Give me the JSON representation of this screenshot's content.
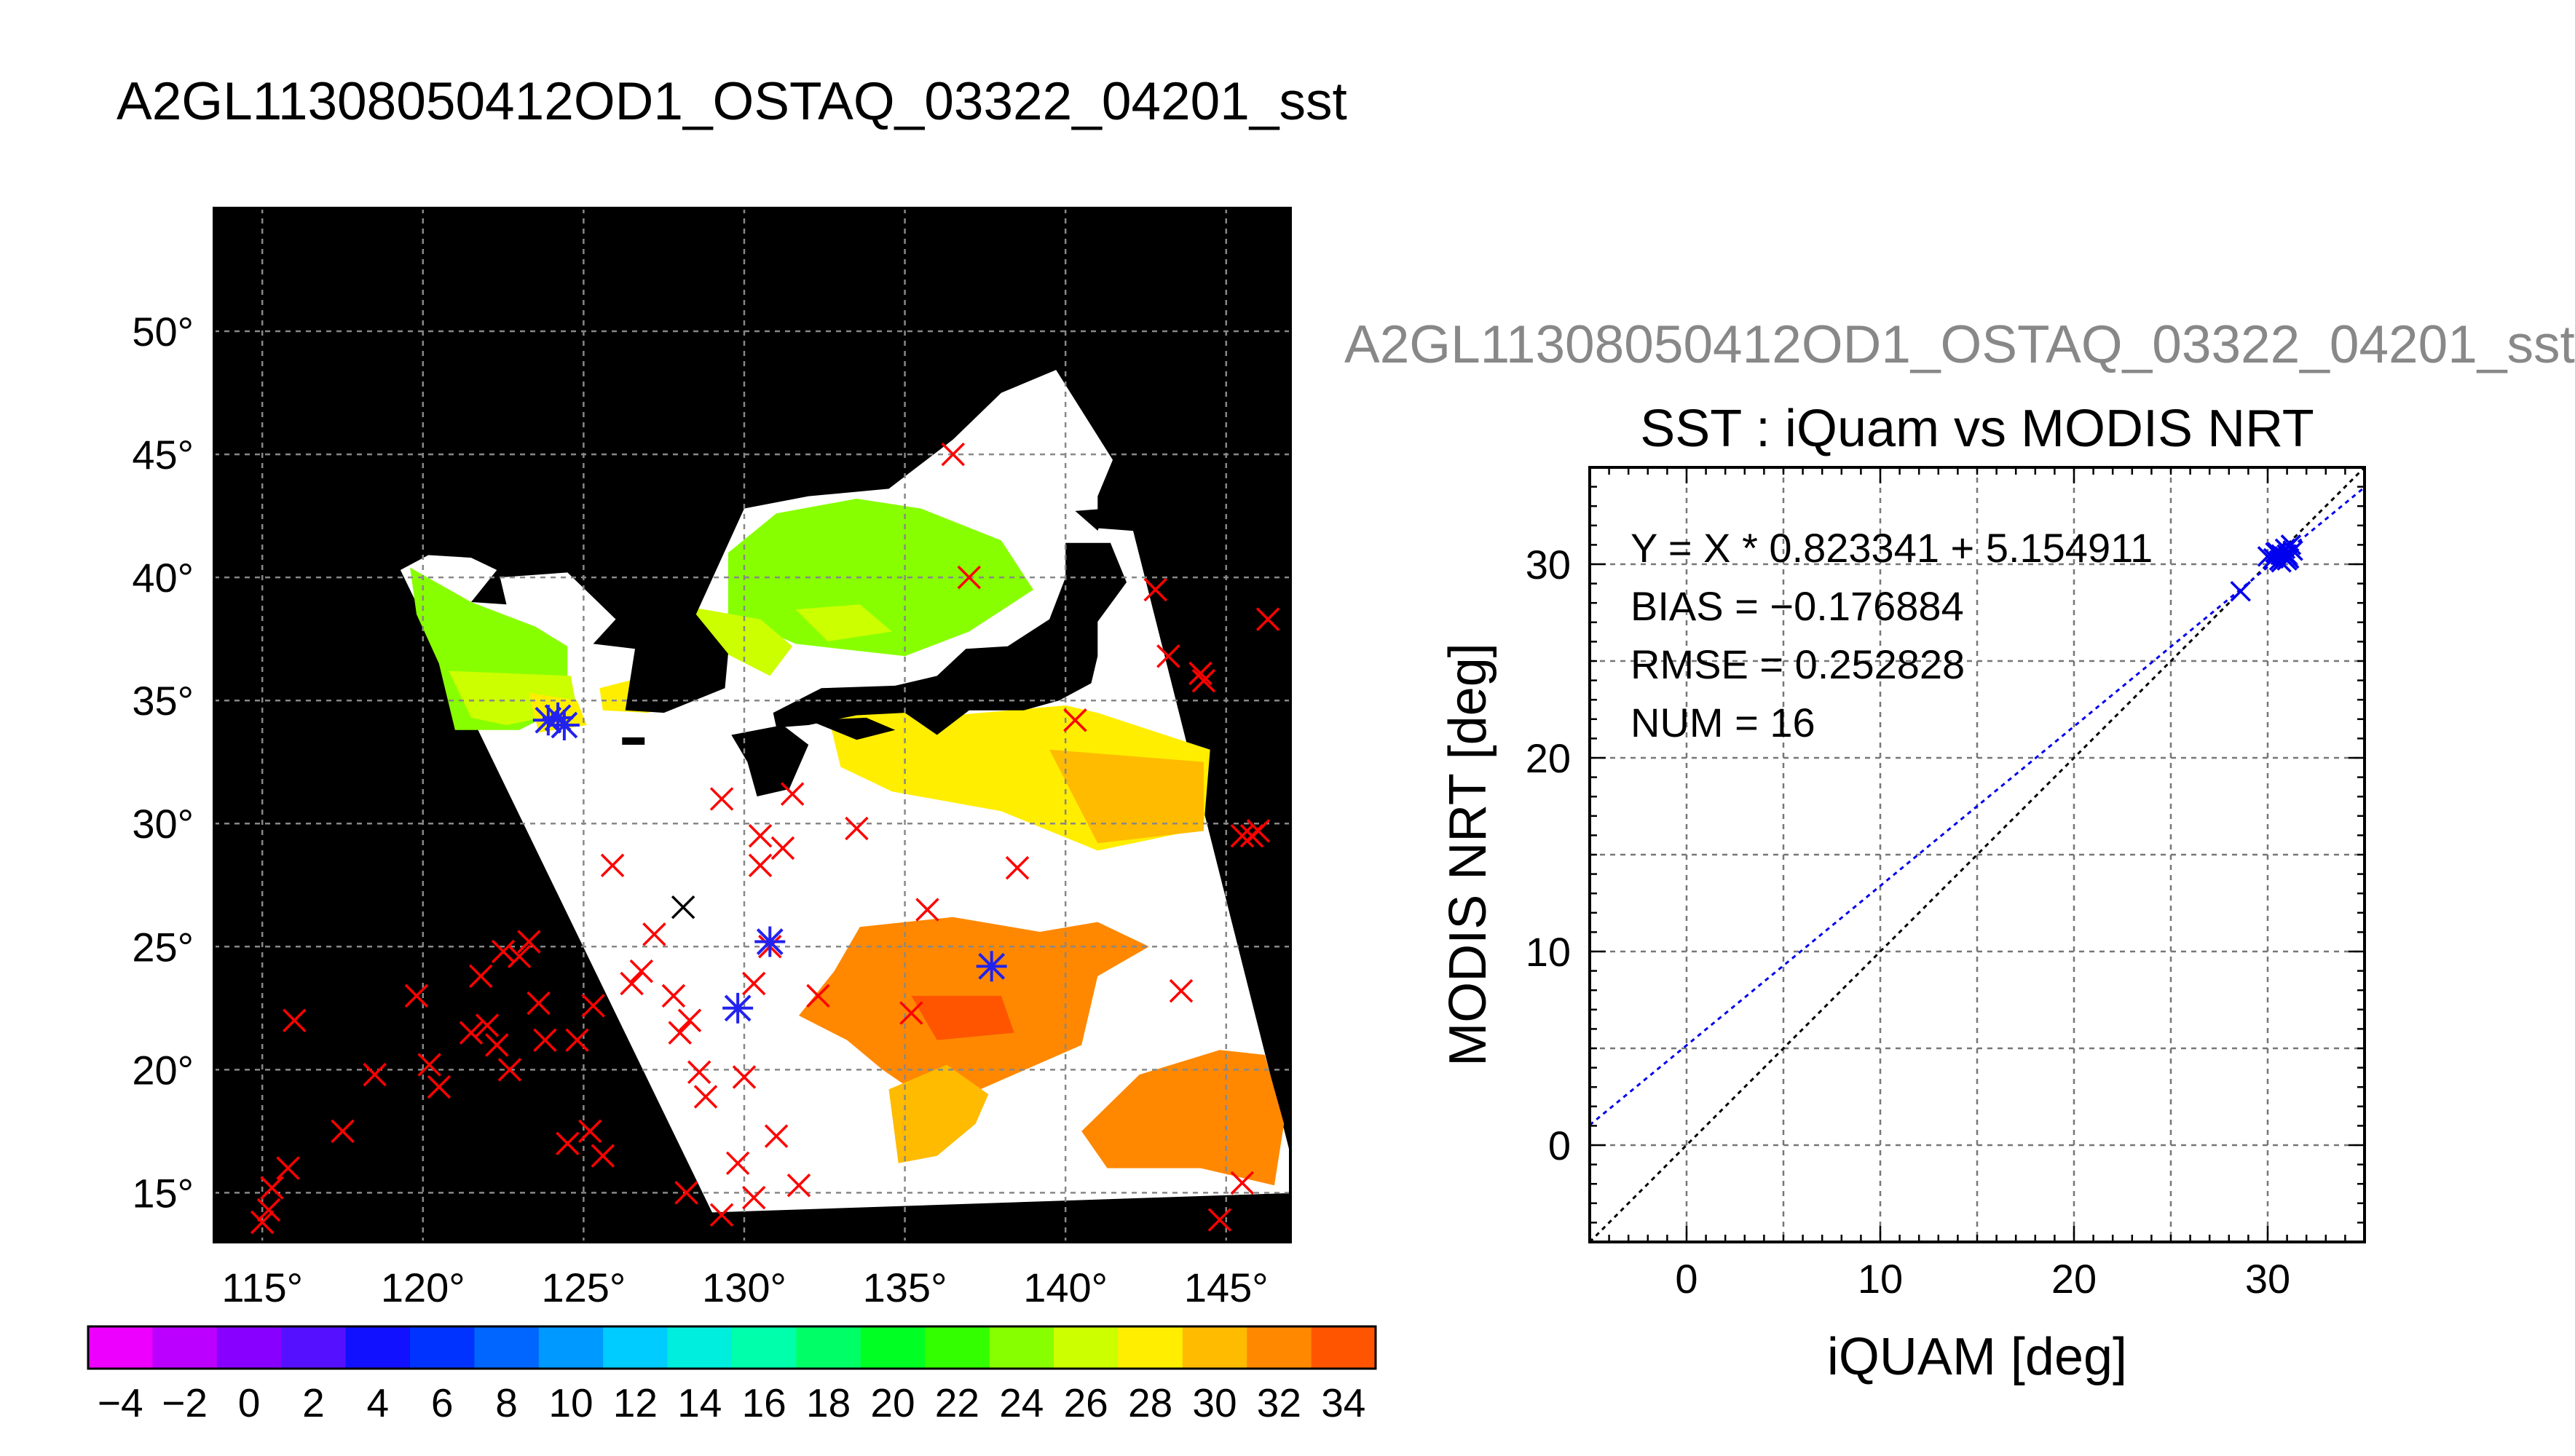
{
  "page": {
    "main_title": "A2GL11308050412OD1_OSTAQ_03322_04201_sst",
    "scatter_subtitle": "A2GL11308050412OD1_OSTAQ_03322_04201_sst"
  },
  "chart_data": [
    {
      "type": "map",
      "xlabel": "",
      "ylabel": "",
      "lon_ticks": [
        115,
        120,
        125,
        130,
        135,
        140,
        145
      ],
      "lon_tick_labels": [
        "115°",
        "120°",
        "125°",
        "130°",
        "135°",
        "140°",
        "145°"
      ],
      "lat_ticks": [
        15,
        20,
        25,
        30,
        35,
        40,
        45,
        50
      ],
      "lat_tick_labels": [
        "15°",
        "20°",
        "25°",
        "30°",
        "35°",
        "40°",
        "45°",
        "50°"
      ],
      "xlim": [
        113.5,
        147
      ],
      "ylim": [
        13,
        55
      ],
      "grid": true,
      "background": "#000000",
      "colorbar": {
        "vmin": -5,
        "vmax": 35,
        "step": 2,
        "tick_values": [
          -4,
          -2,
          0,
          2,
          4,
          6,
          8,
          10,
          12,
          14,
          16,
          18,
          20,
          22,
          24,
          26,
          28,
          30,
          32,
          34
        ],
        "tick_labels": [
          "−4",
          "−2",
          "0",
          "2",
          "4",
          "6",
          "8",
          "10",
          "12",
          "14",
          "16",
          "18",
          "20",
          "22",
          "24",
          "26",
          "28",
          "30",
          "32",
          "34"
        ],
        "colors": [
          "#ee00ff",
          "#bb00ff",
          "#8800ff",
          "#5511ff",
          "#1111ff",
          "#0033ff",
          "#0066ff",
          "#0099ff",
          "#00ccff",
          "#00eedd",
          "#00ffaa",
          "#00ff66",
          "#00ff22",
          "#33ff00",
          "#88ff00",
          "#ccff00",
          "#ffee00",
          "#ffbb00",
          "#ff8800",
          "#ff5500"
        ]
      },
      "swath_lonlat": [
        [
          119.3,
          40.3
        ],
        [
          137.5,
          53.0
        ],
        [
          141.6,
          44.5
        ],
        [
          147.3,
          15.0
        ],
        [
          129.0,
          14.2
        ]
      ],
      "land_color": "#000000",
      "red_matchups": [
        [
          115.2,
          14.3
        ],
        [
          115.0,
          13.8
        ],
        [
          115.3,
          15.2
        ],
        [
          115.8,
          16.0
        ],
        [
          116.0,
          22.0
        ],
        [
          117.5,
          17.5
        ],
        [
          118.5,
          19.8
        ],
        [
          119.8,
          23.0
        ],
        [
          120.2,
          20.2
        ],
        [
          120.5,
          19.3
        ],
        [
          121.8,
          23.8
        ],
        [
          121.5,
          21.5
        ],
        [
          122.0,
          21.8
        ],
        [
          122.3,
          21.0
        ],
        [
          122.5,
          24.8
        ],
        [
          123.0,
          24.6
        ],
        [
          123.3,
          25.2
        ],
        [
          123.6,
          22.7
        ],
        [
          122.7,
          20.0
        ],
        [
          123.8,
          21.2
        ],
        [
          124.5,
          17.0
        ],
        [
          124.8,
          21.2
        ],
        [
          125.3,
          22.6
        ],
        [
          125.2,
          17.5
        ],
        [
          125.6,
          16.5
        ],
        [
          125.9,
          28.3
        ],
        [
          126.5,
          23.5
        ],
        [
          126.8,
          24.0
        ],
        [
          127.2,
          25.5
        ],
        [
          127.8,
          23.0
        ],
        [
          128.0,
          21.5
        ],
        [
          128.3,
          22.0
        ],
        [
          128.6,
          19.9
        ],
        [
          128.2,
          15.0
        ],
        [
          128.8,
          18.9
        ],
        [
          129.3,
          14.1
        ],
        [
          129.8,
          16.2
        ],
        [
          130.3,
          14.8
        ],
        [
          130.0,
          19.7
        ],
        [
          130.3,
          23.5
        ],
        [
          130.8,
          25.0
        ],
        [
          131.0,
          17.3
        ],
        [
          131.7,
          15.3
        ],
        [
          129.3,
          31.0
        ],
        [
          130.5,
          29.5
        ],
        [
          130.5,
          28.3
        ],
        [
          131.2,
          29.0
        ],
        [
          131.5,
          31.2
        ],
        [
          132.3,
          23.0
        ],
        [
          133.5,
          29.8
        ],
        [
          135.7,
          26.5
        ],
        [
          135.2,
          22.3
        ],
        [
          138.5,
          28.2
        ],
        [
          137.0,
          40.0
        ],
        [
          136.5,
          45.0
        ],
        [
          140.3,
          34.2
        ],
        [
          142.8,
          39.5
        ],
        [
          143.2,
          36.8
        ],
        [
          144.2,
          36.1
        ],
        [
          144.3,
          35.8
        ],
        [
          145.5,
          29.5
        ],
        [
          145.8,
          29.5
        ],
        [
          146.0,
          29.7
        ],
        [
          146.3,
          38.3
        ],
        [
          143.6,
          23.2
        ],
        [
          145.5,
          15.4
        ],
        [
          144.8,
          13.9
        ]
      ],
      "blue_matchups": [
        [
          123.9,
          34.2
        ],
        [
          124.2,
          34.3
        ],
        [
          124.4,
          34.0
        ],
        [
          130.8,
          25.2
        ],
        [
          129.8,
          22.5
        ],
        [
          137.7,
          24.2
        ]
      ],
      "black_matchups": [
        [
          128.1,
          26.6
        ]
      ]
    },
    {
      "type": "scatter",
      "title": "SST : iQuam vs MODIS NRT",
      "xlabel": "iQUAM [deg]",
      "ylabel": "MODIS NRT [deg]",
      "xlim": [
        -5,
        35
      ],
      "ylim": [
        -5,
        35
      ],
      "xticks": [
        0,
        10,
        20,
        30
      ],
      "yticks": [
        0,
        10,
        20,
        30
      ],
      "minor_step": 5,
      "grid": true,
      "annotations": [
        "Y = X * 0.823341 + 5.154911",
        "BIAS = −0.176884",
        "RMSE = 0.252828",
        "NUM = 16"
      ],
      "fit_line": {
        "slope": 0.823341,
        "intercept": 5.154911,
        "color": "#0000ee"
      },
      "identity_line": {
        "color": "#000000"
      },
      "series": [
        {
          "marker_color": "#0000ee",
          "x": [
            28.6,
            30.0,
            30.3,
            30.5,
            30.6,
            30.7,
            30.8,
            30.9,
            30.9,
            31.0,
            31.1,
            31.2,
            31.0,
            30.4,
            30.7,
            31.3
          ],
          "y": [
            28.6,
            30.4,
            30.3,
            30.6,
            30.2,
            30.5,
            30.4,
            30.3,
            30.8,
            30.5,
            30.3,
            31.0,
            30.2,
            30.6,
            30.1,
            30.7
          ]
        }
      ]
    }
  ]
}
